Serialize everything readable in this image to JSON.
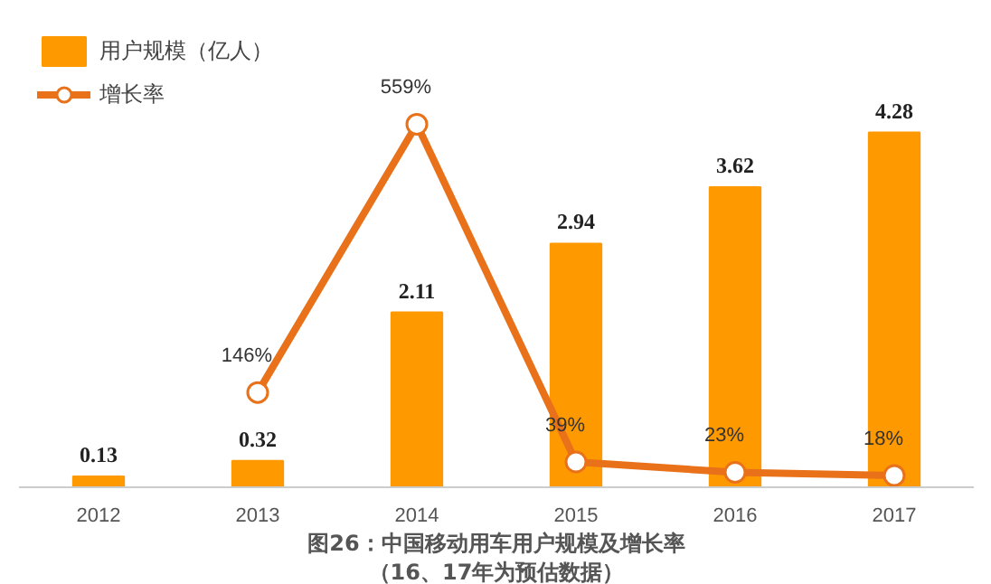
{
  "chart_data": {
    "type": "bar",
    "categories": [
      "2012",
      "2013",
      "2014",
      "2015",
      "2016",
      "2017"
    ],
    "series": [
      {
        "name": "用户规模（亿人）",
        "color": "#ff9900",
        "values": [
          0.13,
          0.32,
          2.11,
          2.94,
          3.62,
          4.28
        ]
      },
      {
        "name": "增长率",
        "type": "line",
        "axis": "y2",
        "color": "#e8711a",
        "marker": "circle",
        "values": [
          null,
          146,
          559,
          39,
          23,
          18
        ],
        "value_labels": [
          null,
          "146%",
          "559%",
          "39%",
          "23%",
          "18%"
        ]
      }
    ],
    "tick_labels": "x",
    "data_labels": true,
    "legend": "top left",
    "grid": false,
    "annotations": [
      "图26：中国移动用车用户规模及增长率",
      "（16、17年为预估数据）"
    ]
  }
}
